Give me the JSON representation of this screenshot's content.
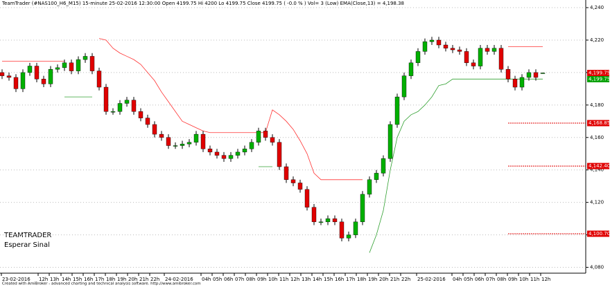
{
  "chart_data": {
    "type": "candlestick",
    "title": "TeamTrader (#NAS100_H6_M15) 15-minute  25-02-2016 12:30:00   Open 4199.75  Hi 4200  Lo 4199.75  Close 4199.75  ( -0.0 % )  Vol= 3 (Low)  EMA(Close,13) = 4,198.38",
    "annotations": [
      "TEAMTRADER",
      "Esperar Sinal"
    ],
    "footer": "Created with AmiBroker - advanced charting and technical analysis software. http://www.amibroker.com",
    "up_color": "#00b000",
    "down_color": "#e00000",
    "open": [
      4200,
      4198,
      4197,
      4190,
      4200,
      4204,
      4196,
      4193,
      4202,
      4203,
      4206,
      4201,
      4208,
      4210,
      4201,
      4191,
      4176,
      4176,
      4181,
      4183,
      4176,
      4172,
      4168,
      4162,
      4160,
      4155,
      4155,
      4156,
      4157,
      4162,
      4153,
      4151,
      4149,
      4147,
      4149,
      4151,
      4153,
      4157,
      4164,
      4160,
      4157,
      4142,
      4134,
      4132,
      4128,
      4117,
      4108,
      4108,
      4110,
      4108,
      4098,
      4100,
      4108,
      4125,
      4134,
      4138,
      4147,
      4168,
      4185,
      4198,
      4206,
      4213,
      4219,
      4220,
      4217,
      4215,
      4214,
      4213,
      4206,
      4204,
      4215,
      4213,
      4215,
      4202,
      4196,
      4191,
      4197,
      4200,
      4199.75
    ],
    "high": [
      4202,
      4200,
      4199,
      4202,
      4206,
      4206,
      4198,
      4204,
      4205,
      4208,
      4208,
      4210,
      4212,
      4212,
      4203,
      4193,
      4178,
      4183,
      4185,
      4185,
      4178,
      4174,
      4170,
      4164,
      4162,
      4157,
      4158,
      4159,
      4164,
      4164,
      4155,
      4153,
      4151,
      4151,
      4153,
      4155,
      4159,
      4166,
      4166,
      4162,
      4159,
      4144,
      4136,
      4134,
      4130,
      4119,
      4110,
      4112,
      4112,
      4110,
      4102,
      4110,
      4127,
      4136,
      4140,
      4149,
      4170,
      4187,
      4200,
      4208,
      4215,
      4221,
      4222,
      4222,
      4219,
      4217,
      4216,
      4215,
      4208,
      4217,
      4217,
      4217,
      4217,
      4204,
      4198,
      4199,
      4202,
      4202,
      4200
    ],
    "low": [
      4196,
      4195,
      4188,
      4188,
      4198,
      4194,
      4191,
      4191,
      4200,
      4201,
      4199,
      4199,
      4206,
      4199,
      4189,
      4174,
      4174,
      4174,
      4179,
      4174,
      4170,
      4166,
      4160,
      4158,
      4153,
      4153,
      4153,
      4154,
      4155,
      4151,
      4149,
      4147,
      4145,
      4145,
      4147,
      4149,
      4151,
      4155,
      4158,
      4155,
      4140,
      4132,
      4130,
      4126,
      4115,
      4106,
      4106,
      4106,
      4106,
      4096,
      4096,
      4098,
      4106,
      4123,
      4132,
      4136,
      4145,
      4166,
      4183,
      4196,
      4204,
      4211,
      4217,
      4215,
      4213,
      4212,
      4211,
      4204,
      4202,
      4202,
      4211,
      4211,
      4200,
      4194,
      4189,
      4189,
      4195,
      4195,
      4199.75
    ],
    "close": [
      4198,
      4197,
      4190,
      4200,
      4204,
      4196,
      4193,
      4202,
      4203,
      4206,
      4201,
      4208,
      4210,
      4201,
      4191,
      4176,
      4176,
      4181,
      4183,
      4176,
      4172,
      4168,
      4162,
      4160,
      4155,
      4155,
      4156,
      4157,
      4162,
      4153,
      4151,
      4149,
      4147,
      4149,
      4151,
      4153,
      4157,
      4164,
      4160,
      4157,
      4142,
      4134,
      4132,
      4128,
      4117,
      4108,
      4108,
      4110,
      4108,
      4098,
      4100,
      4108,
      4125,
      4134,
      4138,
      4147,
      4168,
      4185,
      4198,
      4206,
      4213,
      4219,
      4220,
      4217,
      4215,
      4214,
      4213,
      4206,
      4204,
      4215,
      4213,
      4215,
      4202,
      4196,
      4191,
      4197,
      4200,
      4197,
      4199.75
    ],
    "stops": [
      {
        "color": "#ff3030",
        "values": [
          4207,
          4207,
          4207,
          4207,
          4207,
          4207,
          4207,
          4207,
          4207,
          4207,
          null,
          null,
          null,
          null,
          4221,
          4220,
          4215,
          4212,
          4210,
          4208,
          4205,
          4200,
          4195,
          4188,
          4182,
          4176,
          4170,
          4168,
          4166,
          4164,
          4163,
          4163,
          4163,
          4163,
          4163,
          4163,
          4163,
          4163,
          4163,
          4177,
          4174,
          4170,
          4165,
          4158,
          4150,
          4138,
          4134,
          4134,
          4134,
          4134,
          4134,
          4134,
          4134,
          null,
          null,
          null,
          null,
          null,
          null,
          null,
          null,
          null,
          null,
          null,
          null,
          null,
          null,
          null,
          null,
          null,
          null,
          null,
          null,
          4216,
          4216,
          4216,
          4216,
          4216,
          4216
        ]
      },
      {
        "color": "#30a030",
        "values": [
          null,
          null,
          null,
          null,
          null,
          null,
          null,
          null,
          null,
          4185,
          4185,
          4185,
          4185,
          4185,
          null,
          null,
          null,
          null,
          null,
          null,
          null,
          null,
          null,
          null,
          null,
          null,
          null,
          null,
          null,
          null,
          null,
          null,
          null,
          null,
          null,
          null,
          null,
          4142,
          4142,
          4142,
          null,
          null,
          null,
          null,
          null,
          null,
          null,
          null,
          null,
          null,
          null,
          null,
          null,
          4089,
          4100,
          4115,
          4140,
          4160,
          4170,
          4174,
          4176,
          4180,
          4185,
          4192,
          4193,
          4196,
          4196,
          4196,
          4196,
          4196,
          4196,
          4196,
          4196,
          4196,
          4196,
          4196,
          4196,
          4196,
          4196
        ]
      }
    ],
    "levels": [
      {
        "value": 4168.85,
        "label": "4,168.85"
      },
      {
        "value": 4142.4,
        "label": "4,142.40"
      },
      {
        "value": 4100.7,
        "label": "4,100.70"
      }
    ],
    "price_labels": [
      {
        "value": 4199.75,
        "label": "4,199.75",
        "color": "#e00000"
      },
      {
        "value": 4199.75,
        "label": "4,199.75",
        "color": "#00a000"
      }
    ],
    "xlim": [
      -0.3,
      84.2
    ],
    "ylim": [
      4076.4,
      4244.7
    ],
    "grid": true,
    "yticks": [
      {
        "value": 4080,
        "label": "4,080"
      },
      {
        "value": 4100,
        "label": "4,100"
      },
      {
        "value": 4120,
        "label": "4,120"
      },
      {
        "value": 4140,
        "label": "4,140"
      },
      {
        "value": 4160,
        "label": "4,160"
      },
      {
        "value": 4180,
        "label": "4,180"
      },
      {
        "value": 4200,
        "label": "4,200"
      },
      {
        "value": 4220,
        "label": "4,220"
      },
      {
        "value": 4240,
        "label": "4,240"
      }
    ],
    "xticks": [
      {
        "value": -0.1,
        "label": "23-02-2016"
      },
      {
        "value": 5.2,
        "label": "12h"
      },
      {
        "value": 6.8,
        "label": "13h"
      },
      {
        "value": 8.5,
        "label": "14h"
      },
      {
        "value": 10.1,
        "label": "15h"
      },
      {
        "value": 11.7,
        "label": "16h"
      },
      {
        "value": 13.3,
        "label": "17h"
      },
      {
        "value": 14.9,
        "label": "18h"
      },
      {
        "value": 16.5,
        "label": "19h"
      },
      {
        "value": 18.1,
        "label": "20h"
      },
      {
        "value": 19.7,
        "label": "21h"
      },
      {
        "value": 21.3,
        "label": "22h"
      },
      {
        "value": 23.4,
        "label": "24-02-2016"
      },
      {
        "value": 28.7,
        "label": "04h"
      },
      {
        "value": 30.3,
        "label": "05h"
      },
      {
        "value": 31.9,
        "label": "06h"
      },
      {
        "value": 33.5,
        "label": "07h"
      },
      {
        "value": 35.1,
        "label": "08h"
      },
      {
        "value": 36.7,
        "label": "09h"
      },
      {
        "value": 38.3,
        "label": "10h"
      },
      {
        "value": 39.9,
        "label": "11h"
      },
      {
        "value": 41.5,
        "label": "12h"
      },
      {
        "value": 43.1,
        "label": "13h"
      },
      {
        "value": 44.7,
        "label": "14h"
      },
      {
        "value": 46.3,
        "label": "15h"
      },
      {
        "value": 47.9,
        "label": "16h"
      },
      {
        "value": 49.5,
        "label": "17h"
      },
      {
        "value": 51.1,
        "label": "18h"
      },
      {
        "value": 52.7,
        "label": "19h"
      },
      {
        "value": 54.3,
        "label": "20h"
      },
      {
        "value": 55.9,
        "label": "21h"
      },
      {
        "value": 57.5,
        "label": "22h"
      },
      {
        "value": 59.8,
        "label": "25-02-2016"
      },
      {
        "value": 64.9,
        "label": "04h"
      },
      {
        "value": 66.5,
        "label": "05h"
      },
      {
        "value": 68.1,
        "label": "06h"
      },
      {
        "value": 69.7,
        "label": "07h"
      },
      {
        "value": 71.3,
        "label": "08h"
      },
      {
        "value": 72.9,
        "label": "09h"
      },
      {
        "value": 74.5,
        "label": "10h"
      },
      {
        "value": 76.1,
        "label": "11h"
      },
      {
        "value": 77.7,
        "label": "12h"
      }
    ]
  }
}
